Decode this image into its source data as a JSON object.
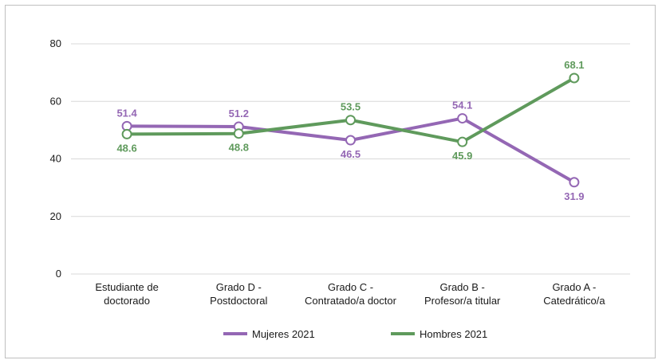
{
  "chart_data": {
    "type": "line",
    "categories": [
      [
        "Estudiante de",
        "doctorado"
      ],
      [
        "Grado D -",
        "Postdoctoral"
      ],
      [
        "Grado C -",
        "Contratado/a doctor"
      ],
      [
        "Grado B -",
        "Profesor/a titular"
      ],
      [
        "Grado A -",
        "Catedrático/a"
      ]
    ],
    "series": [
      {
        "name": "Mujeres 2021",
        "color": "#9467b4",
        "values": [
          51.4,
          51.2,
          46.5,
          54.1,
          31.9
        ],
        "label_pos": [
          "above",
          "above",
          "below",
          "above",
          "below"
        ]
      },
      {
        "name": "Hombres 2021",
        "color": "#5f9a5c",
        "values": [
          48.6,
          48.8,
          53.5,
          45.9,
          68.1
        ],
        "label_pos": [
          "below",
          "below",
          "above",
          "below",
          "above"
        ]
      }
    ],
    "yticks": [
      0,
      20,
      40,
      60,
      80
    ],
    "ylim": [
      0,
      80
    ],
    "grid": true,
    "legend": "bottom-center"
  }
}
